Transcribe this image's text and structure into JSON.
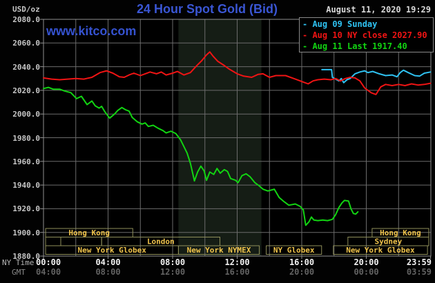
{
  "header": {
    "unit_label": "USD/oz",
    "title": "24 Hour Spot Gold (Bid)",
    "datetime": "August 11, 2020 19:29",
    "watermark": "www.kitco.com"
  },
  "legend": {
    "marker": "-",
    "items": [
      {
        "label": "Aug 09 Sunday",
        "color": "#2fc2f2"
      },
      {
        "label": "Aug 10 NY close 2027.90",
        "color": "#f01414"
      },
      {
        "label": "Aug 11 Last 1917.40",
        "color": "#12d412"
      }
    ]
  },
  "axis": {
    "ny_row_label": "NY Time",
    "gmt_row_label": "GMT",
    "y_ticks": [
      "2080.0",
      "2060.0",
      "2040.0",
      "2020.0",
      "2000.0",
      "1980.0",
      "1960.0",
      "1940.0",
      "1920.0",
      "1900.0",
      "1880.0"
    ],
    "x_ticks": [
      {
        "ny": "00:00",
        "gmt": "04:00",
        "t": 0,
        "align": "left"
      },
      {
        "ny": "04:00",
        "gmt": "08:00",
        "t": 4,
        "align": "center"
      },
      {
        "ny": "08:00",
        "gmt": "12:00",
        "t": 8,
        "align": "center"
      },
      {
        "ny": "12:00",
        "gmt": "16:00",
        "t": 12,
        "align": "center"
      },
      {
        "ny": "16:00",
        "gmt": "20:00",
        "t": 16,
        "align": "center"
      },
      {
        "ny": "20:00",
        "gmt": "00:00",
        "t": 20,
        "align": "center"
      },
      {
        "ny": "23:59",
        "gmt": "03:59",
        "t": 23.983,
        "align": "right"
      }
    ]
  },
  "sessions": {
    "rows": [
      [
        {
          "label": "Hong Kong",
          "t1": 0.13,
          "t2": 5.53
        },
        {
          "label": "Hong Kong",
          "t1": 20.36,
          "t2": 23.87
        }
      ],
      [
        {
          "label": "",
          "t1": 0.13,
          "t2": 1.07
        },
        {
          "label": "",
          "t1": 1.07,
          "t2": 3.6
        },
        {
          "label": "London",
          "t1": 3.6,
          "t2": 10.93
        },
        {
          "label": "Sydney",
          "t1": 18.86,
          "t2": 23.87
        }
      ],
      [
        {
          "label": "New York Globex",
          "t1": 0.13,
          "t2": 8.36
        },
        {
          "label": "New York NYMEX",
          "t1": 8.36,
          "t2": 13.37
        },
        {
          "label": "NY Globex",
          "t1": 13.8,
          "t2": 17.23
        },
        {
          "label": "New York Globex",
          "t1": 17.96,
          "t2": 23.79
        }
      ]
    ]
  },
  "colors": {
    "background": "#020202",
    "plot_bg": "#000000",
    "grid": "#6c6c6c",
    "border": "#919191",
    "nymex_band": "#151d15",
    "session_border": "#8f8f5a",
    "session_text": "#f0c44c"
  },
  "chart_data": {
    "type": "line",
    "title": "24 Hour Spot Gold (Bid)",
    "xlabel": "NY Time (hours)",
    "ylabel": "USD/oz",
    "xlim": [
      0,
      24
    ],
    "ylim": [
      1880,
      2080
    ],
    "y_step": 20,
    "x_gridline_step_hours": 2,
    "nymex_band_hours": [
      8.36,
      13.5
    ],
    "series": [
      {
        "name": "Aug 09 Sunday",
        "color": "#2fc2f2",
        "points": [
          [
            17.25,
            2037.5
          ],
          [
            17.85,
            2037.5
          ],
          [
            17.9,
            2031
          ],
          [
            18.1,
            2029.5
          ],
          [
            18.3,
            2028
          ],
          [
            18.45,
            2030
          ],
          [
            18.6,
            2026.5
          ],
          [
            18.8,
            2029
          ],
          [
            19,
            2030
          ],
          [
            19.3,
            2034
          ],
          [
            19.6,
            2035.5
          ],
          [
            19.9,
            2036.5
          ],
          [
            20.1,
            2035
          ],
          [
            20.4,
            2036
          ],
          [
            20.8,
            2034
          ],
          [
            21.2,
            2032.5
          ],
          [
            21.6,
            2033
          ],
          [
            21.9,
            2031.5
          ],
          [
            22.1,
            2035
          ],
          [
            22.3,
            2037
          ],
          [
            22.6,
            2035
          ],
          [
            23,
            2032.5
          ],
          [
            23.3,
            2032
          ],
          [
            23.6,
            2034.5
          ],
          [
            23.98,
            2035.5
          ]
        ]
      },
      {
        "name": "Aug 10 NY close 2027.90",
        "color": "#f01414",
        "points": [
          [
            0,
            2030.5
          ],
          [
            0.5,
            2029.5
          ],
          [
            1,
            2029
          ],
          [
            1.5,
            2029.5
          ],
          [
            2,
            2030
          ],
          [
            2.5,
            2029.5
          ],
          [
            3,
            2031
          ],
          [
            3.5,
            2035
          ],
          [
            3.9,
            2036.5
          ],
          [
            4.3,
            2034.5
          ],
          [
            4.7,
            2031.5
          ],
          [
            5,
            2031
          ],
          [
            5.3,
            2033
          ],
          [
            5.6,
            2034.5
          ],
          [
            6,
            2032.5
          ],
          [
            6.3,
            2034
          ],
          [
            6.6,
            2035.5
          ],
          [
            7,
            2034
          ],
          [
            7.3,
            2035.5
          ],
          [
            7.6,
            2033
          ],
          [
            8,
            2034.5
          ],
          [
            8.3,
            2036
          ],
          [
            8.7,
            2033
          ],
          [
            9.1,
            2035
          ],
          [
            9.5,
            2041
          ],
          [
            9.8,
            2045
          ],
          [
            10.1,
            2050
          ],
          [
            10.3,
            2052.5
          ],
          [
            10.5,
            2049
          ],
          [
            10.8,
            2044.5
          ],
          [
            11.2,
            2041
          ],
          [
            11.5,
            2038
          ],
          [
            12,
            2034
          ],
          [
            12.4,
            2032
          ],
          [
            12.9,
            2031
          ],
          [
            13.3,
            2033.5
          ],
          [
            13.6,
            2034
          ],
          [
            14,
            2031
          ],
          [
            14.4,
            2032.5
          ],
          [
            15,
            2032.5
          ],
          [
            15.6,
            2029.5
          ],
          [
            16.1,
            2027
          ],
          [
            16.4,
            2025.5
          ],
          [
            16.7,
            2028
          ],
          [
            17,
            2029
          ],
          [
            17.4,
            2029.5
          ],
          [
            17.8,
            2029
          ],
          [
            18.1,
            2030
          ],
          [
            18.4,
            2028
          ],
          [
            18.7,
            2030
          ],
          [
            19,
            2031
          ],
          [
            19.3,
            2030.5
          ],
          [
            19.6,
            2028
          ],
          [
            19.9,
            2022
          ],
          [
            20.3,
            2018
          ],
          [
            20.6,
            2016.5
          ],
          [
            20.9,
            2023
          ],
          [
            21.2,
            2025
          ],
          [
            21.6,
            2024
          ],
          [
            22,
            2025
          ],
          [
            22.4,
            2024
          ],
          [
            22.8,
            2025.5
          ],
          [
            23.2,
            2024.5
          ],
          [
            23.6,
            2025
          ],
          [
            23.98,
            2026
          ]
        ]
      },
      {
        "name": "Aug 11 Last 1917.40",
        "color": "#12d412",
        "points": [
          [
            0,
            2021.5
          ],
          [
            0.3,
            2022.5
          ],
          [
            0.6,
            2021
          ],
          [
            1,
            2021
          ],
          [
            1.3,
            2019.5
          ],
          [
            1.7,
            2018
          ],
          [
            2.05,
            2013
          ],
          [
            2.35,
            2015
          ],
          [
            2.7,
            2008
          ],
          [
            3,
            2011
          ],
          [
            3.2,
            2007
          ],
          [
            3.45,
            2005
          ],
          [
            3.6,
            2006.5
          ],
          [
            3.8,
            2002
          ],
          [
            4.1,
            1996.5
          ],
          [
            4.4,
            2000
          ],
          [
            4.6,
            2003
          ],
          [
            4.85,
            2005.5
          ],
          [
            5.1,
            2003.5
          ],
          [
            5.3,
            2002.5
          ],
          [
            5.5,
            1997
          ],
          [
            5.8,
            1993.5
          ],
          [
            6.1,
            1991.5
          ],
          [
            6.3,
            1992.5
          ],
          [
            6.5,
            1989.5
          ],
          [
            6.8,
            1990.5
          ],
          [
            7.1,
            1988
          ],
          [
            7.4,
            1986
          ],
          [
            7.6,
            1984
          ],
          [
            7.9,
            1985.5
          ],
          [
            8.2,
            1983.5
          ],
          [
            8.5,
            1978
          ],
          [
            8.9,
            1967
          ],
          [
            9.1,
            1958.5
          ],
          [
            9.35,
            1943.5
          ],
          [
            9.55,
            1951
          ],
          [
            9.75,
            1956
          ],
          [
            9.95,
            1952
          ],
          [
            10.1,
            1944
          ],
          [
            10.3,
            1951
          ],
          [
            10.55,
            1949
          ],
          [
            10.75,
            1954
          ],
          [
            10.95,
            1950
          ],
          [
            11.2,
            1953
          ],
          [
            11.4,
            1951.5
          ],
          [
            11.6,
            1945.5
          ],
          [
            11.9,
            1944
          ],
          [
            12.05,
            1942
          ],
          [
            12.3,
            1948
          ],
          [
            12.55,
            1949.5
          ],
          [
            12.8,
            1947
          ],
          [
            13.1,
            1942
          ],
          [
            13.35,
            1939.5
          ],
          [
            13.6,
            1936.5
          ],
          [
            13.9,
            1935
          ],
          [
            14.3,
            1936.5
          ],
          [
            14.6,
            1929.5
          ],
          [
            14.9,
            1926
          ],
          [
            15.2,
            1923
          ],
          [
            15.6,
            1924
          ],
          [
            15.9,
            1922
          ],
          [
            16.1,
            1919
          ],
          [
            16.25,
            1906
          ],
          [
            16.45,
            1909
          ],
          [
            16.6,
            1913
          ],
          [
            16.75,
            1910.5
          ],
          [
            17,
            1910
          ],
          [
            17.3,
            1910.5
          ],
          [
            17.6,
            1910
          ],
          [
            17.9,
            1911
          ],
          [
            18.1,
            1915
          ],
          [
            18.3,
            1921
          ],
          [
            18.5,
            1925
          ],
          [
            18.65,
            1927
          ],
          [
            18.9,
            1926.5
          ],
          [
            19.05,
            1920
          ],
          [
            19.2,
            1916
          ],
          [
            19.35,
            1915.5
          ],
          [
            19.48,
            1917.4
          ]
        ]
      }
    ]
  }
}
